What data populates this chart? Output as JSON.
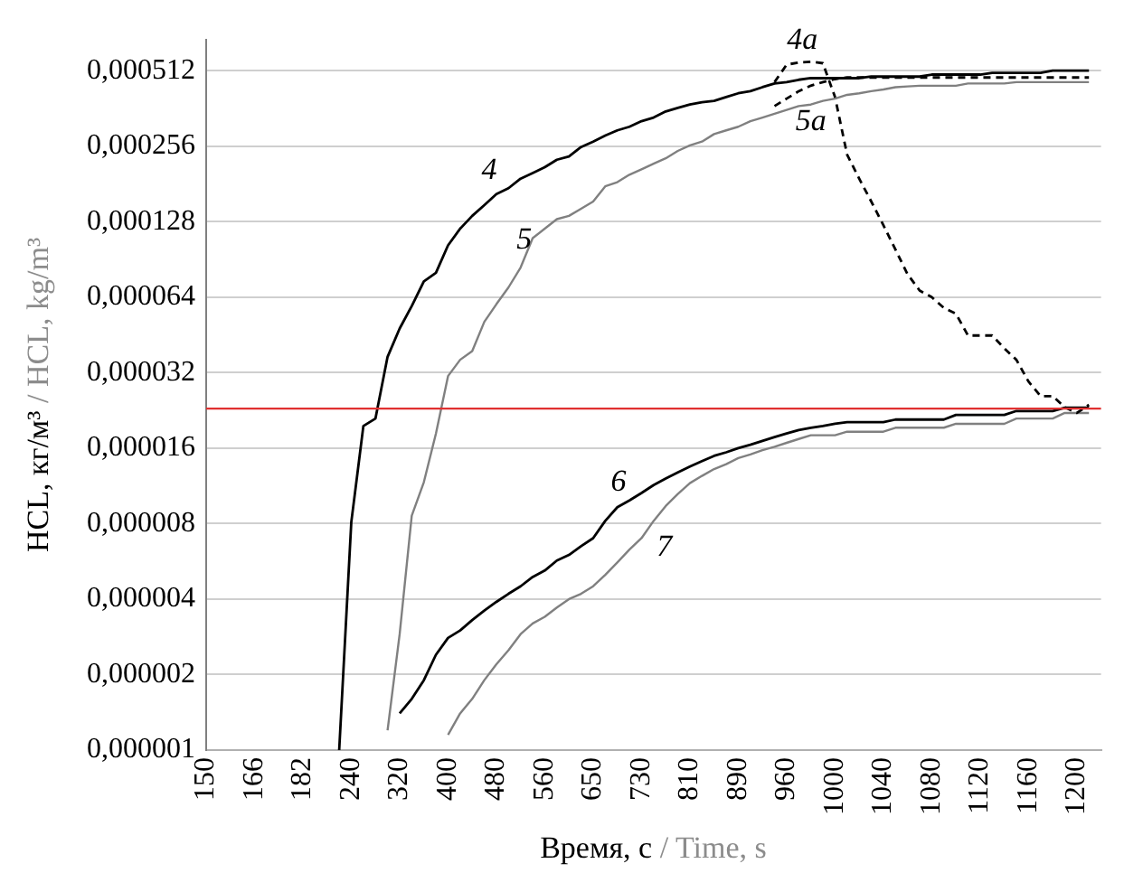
{
  "chart_data": {
    "type": "line",
    "xlabel": "Время, с / Time, s",
    "ylabel": "HCL, кг/м³ / HCL, kg/m³",
    "categories": [
      "150",
      null,
      null,
      null,
      "166",
      null,
      null,
      null,
      "182",
      null,
      null,
      null,
      "240",
      null,
      null,
      null,
      "320",
      null,
      null,
      null,
      "400",
      null,
      null,
      null,
      "480",
      null,
      null,
      null,
      "560",
      null,
      null,
      null,
      "650",
      null,
      null,
      null,
      "730",
      null,
      null,
      null,
      "810",
      null,
      null,
      null,
      "890",
      null,
      null,
      null,
      "960",
      null,
      null,
      null,
      "1000",
      null,
      null,
      null,
      "1040",
      null,
      null,
      null,
      "1080",
      null,
      null,
      null,
      "1120",
      null,
      null,
      null,
      "1160",
      null,
      null,
      null,
      "1200",
      null,
      null
    ],
    "log": "y",
    "ylim": [
      1e-06,
      0.00068
    ],
    "yticks": [
      {
        "value": 1e-06,
        "label": "0,000001"
      },
      {
        "value": 2e-06,
        "label": "0,000002"
      },
      {
        "value": 4e-06,
        "label": "0,000004"
      },
      {
        "value": 8e-06,
        "label": "0,000008"
      },
      {
        "value": 1.6e-05,
        "label": "0,000016"
      },
      {
        "value": 3.2e-05,
        "label": "0,000032"
      },
      {
        "value": 6.4e-05,
        "label": "0,000064"
      },
      {
        "value": 0.000128,
        "label": "0,000128"
      },
      {
        "value": 0.000256,
        "label": "0,000256"
      },
      {
        "value": 0.000512,
        "label": "0,000512"
      }
    ],
    "grid": "y",
    "legend": false,
    "marker": "none",
    "ref_lines": [
      {
        "axis": "y",
        "value": 2.3e-05,
        "color": "#e03030"
      }
    ],
    "series": [
      {
        "name": "4",
        "color": "#000000",
        "line_style": "solid",
        "values": [
          null,
          null,
          null,
          null,
          null,
          null,
          null,
          null,
          null,
          null,
          null,
          1e-06,
          8.1e-06,
          1.96e-05,
          2.1e-05,
          3.7e-05,
          4.8e-05,
          5.9e-05,
          7.4e-05,
          8e-05,
          0.000103,
          0.00012,
          0.000135,
          0.000149,
          0.000165,
          0.000174,
          0.00019,
          0.0002,
          0.000211,
          0.000226,
          0.000233,
          0.000254,
          0.000267,
          0.000282,
          0.000296,
          0.000306,
          0.000322,
          0.000333,
          0.000352,
          0.000364,
          0.000375,
          0.000383,
          0.000388,
          0.000402,
          0.000416,
          0.000424,
          0.00044,
          0.000455,
          0.000461,
          0.000471,
          0.000478,
          0.000478,
          0.000478,
          0.000478,
          0.000478,
          0.000485,
          0.000485,
          0.000485,
          0.000485,
          0.000485,
          0.000494,
          0.000494,
          0.000494,
          0.000494,
          0.000494,
          0.000502,
          0.000502,
          0.000502,
          0.000502,
          0.000502,
          0.000512,
          0.000512,
          0.000512,
          0.000512,
          null
        ]
      },
      {
        "name": "5",
        "color": "#808080",
        "line_style": "solid",
        "values": [
          null,
          null,
          null,
          null,
          null,
          null,
          null,
          null,
          null,
          null,
          null,
          null,
          null,
          null,
          null,
          1.2e-06,
          2.9e-06,
          8.6e-06,
          1.17e-05,
          1.83e-05,
          3.1e-05,
          3.6e-05,
          3.9e-05,
          5.1e-05,
          6e-05,
          7e-05,
          8.4e-05,
          0.00011,
          0.00012,
          0.000131,
          0.000135,
          0.000144,
          0.000154,
          0.000177,
          0.000184,
          0.000197,
          0.000207,
          0.000218,
          0.000229,
          0.000245,
          0.000258,
          0.000267,
          0.000286,
          0.000296,
          0.000306,
          0.000322,
          0.000333,
          0.000345,
          0.000357,
          0.00037,
          0.000375,
          0.000388,
          0.000396,
          0.00041,
          0.000416,
          0.000424,
          0.000431,
          0.00044,
          0.000443,
          0.000446,
          0.000446,
          0.000446,
          0.000446,
          0.000455,
          0.000455,
          0.000455,
          0.000455,
          0.000461,
          0.000461,
          0.000461,
          0.000461,
          0.000461,
          0.000461,
          0.000461,
          null
        ]
      },
      {
        "name": "4a",
        "color": "#000000",
        "line_style": "dashed",
        "values": [
          null,
          null,
          null,
          null,
          null,
          null,
          null,
          null,
          null,
          null,
          null,
          null,
          null,
          null,
          null,
          null,
          null,
          null,
          null,
          null,
          null,
          null,
          null,
          null,
          null,
          null,
          null,
          null,
          null,
          null,
          null,
          null,
          null,
          null,
          null,
          null,
          null,
          null,
          null,
          null,
          null,
          null,
          null,
          null,
          null,
          null,
          null,
          0.000461,
          0.000541,
          0.000552,
          0.000556,
          0.000548,
          0.000402,
          0.000237,
          0.00019,
          0.000154,
          0.000124,
          9.9e-05,
          7.9e-05,
          6.8e-05,
          6.4e-05,
          5.8e-05,
          5.5e-05,
          4.5e-05,
          4.5e-05,
          4.5e-05,
          4e-05,
          3.6e-05,
          2.95e-05,
          2.58e-05,
          2.58e-05,
          2.33e-05,
          2.21e-05,
          2.38e-05,
          null
        ]
      },
      {
        "name": "5a",
        "color": "#000000",
        "line_style": "dashed",
        "values": [
          null,
          null,
          null,
          null,
          null,
          null,
          null,
          null,
          null,
          null,
          null,
          null,
          null,
          null,
          null,
          null,
          null,
          null,
          null,
          null,
          null,
          null,
          null,
          null,
          null,
          null,
          null,
          null,
          null,
          null,
          null,
          null,
          null,
          null,
          null,
          null,
          null,
          null,
          null,
          null,
          null,
          null,
          null,
          null,
          null,
          null,
          null,
          0.00037,
          0.000396,
          0.000424,
          0.000446,
          0.000461,
          0.000474,
          0.000481,
          0.000481,
          0.000481,
          0.000481,
          0.000481,
          0.000481,
          0.000481,
          0.000481,
          0.000481,
          0.000481,
          0.000481,
          0.000481,
          0.000481,
          0.000481,
          0.000481,
          0.000481,
          0.000481,
          0.000481,
          0.000481,
          0.000481,
          0.000481,
          null
        ]
      },
      {
        "name": "6",
        "color": "#000000",
        "line_style": "solid",
        "values": [
          null,
          null,
          null,
          null,
          null,
          null,
          null,
          null,
          null,
          null,
          null,
          null,
          null,
          null,
          null,
          null,
          1.4e-06,
          1.6e-06,
          1.9e-06,
          2.4e-06,
          2.8e-06,
          3e-06,
          3.3e-06,
          3.6e-06,
          3.9e-06,
          4.2e-06,
          4.5e-06,
          4.9e-06,
          5.2e-06,
          5.7e-06,
          6e-06,
          6.5e-06,
          7e-06,
          8.2e-06,
          9.3e-06,
          9.9e-06,
          1.06e-05,
          1.14e-05,
          1.21e-05,
          1.28e-05,
          1.35e-05,
          1.42e-05,
          1.49e-05,
          1.54e-05,
          1.6e-05,
          1.65e-05,
          1.71e-05,
          1.77e-05,
          1.83e-05,
          1.89e-05,
          1.93e-05,
          1.96e-05,
          2e-05,
          2.03e-05,
          2.03e-05,
          2.03e-05,
          2.03e-05,
          2.08e-05,
          2.08e-05,
          2.08e-05,
          2.08e-05,
          2.08e-05,
          2.17e-05,
          2.17e-05,
          2.17e-05,
          2.17e-05,
          2.17e-05,
          2.25e-05,
          2.25e-05,
          2.25e-05,
          2.25e-05,
          2.32e-05,
          2.32e-05,
          2.32e-05,
          null
        ]
      },
      {
        "name": "7",
        "color": "#808080",
        "line_style": "solid",
        "values": [
          null,
          null,
          null,
          null,
          null,
          null,
          null,
          null,
          null,
          null,
          null,
          null,
          null,
          null,
          null,
          null,
          null,
          null,
          null,
          null,
          1.15e-06,
          1.4e-06,
          1.6e-06,
          1.9e-06,
          2.2e-06,
          2.5e-06,
          2.9e-06,
          3.2e-06,
          3.4e-06,
          3.7e-06,
          4e-06,
          4.2e-06,
          4.5e-06,
          5e-06,
          5.6e-06,
          6.3e-06,
          7e-06,
          8.2e-06,
          9.4e-06,
          1.05e-05,
          1.16e-05,
          1.24e-05,
          1.32e-05,
          1.38e-05,
          1.46e-05,
          1.51e-05,
          1.57e-05,
          1.62e-05,
          1.68e-05,
          1.74e-05,
          1.8e-05,
          1.8e-05,
          1.8e-05,
          1.86e-05,
          1.86e-05,
          1.86e-05,
          1.86e-05,
          1.93e-05,
          1.93e-05,
          1.93e-05,
          1.93e-05,
          1.93e-05,
          2e-05,
          2e-05,
          2e-05,
          2e-05,
          2e-05,
          2.1e-05,
          2.1e-05,
          2.1e-05,
          2.1e-05,
          2.21e-05,
          2.21e-05,
          2.21e-05,
          null
        ]
      }
    ]
  }
}
